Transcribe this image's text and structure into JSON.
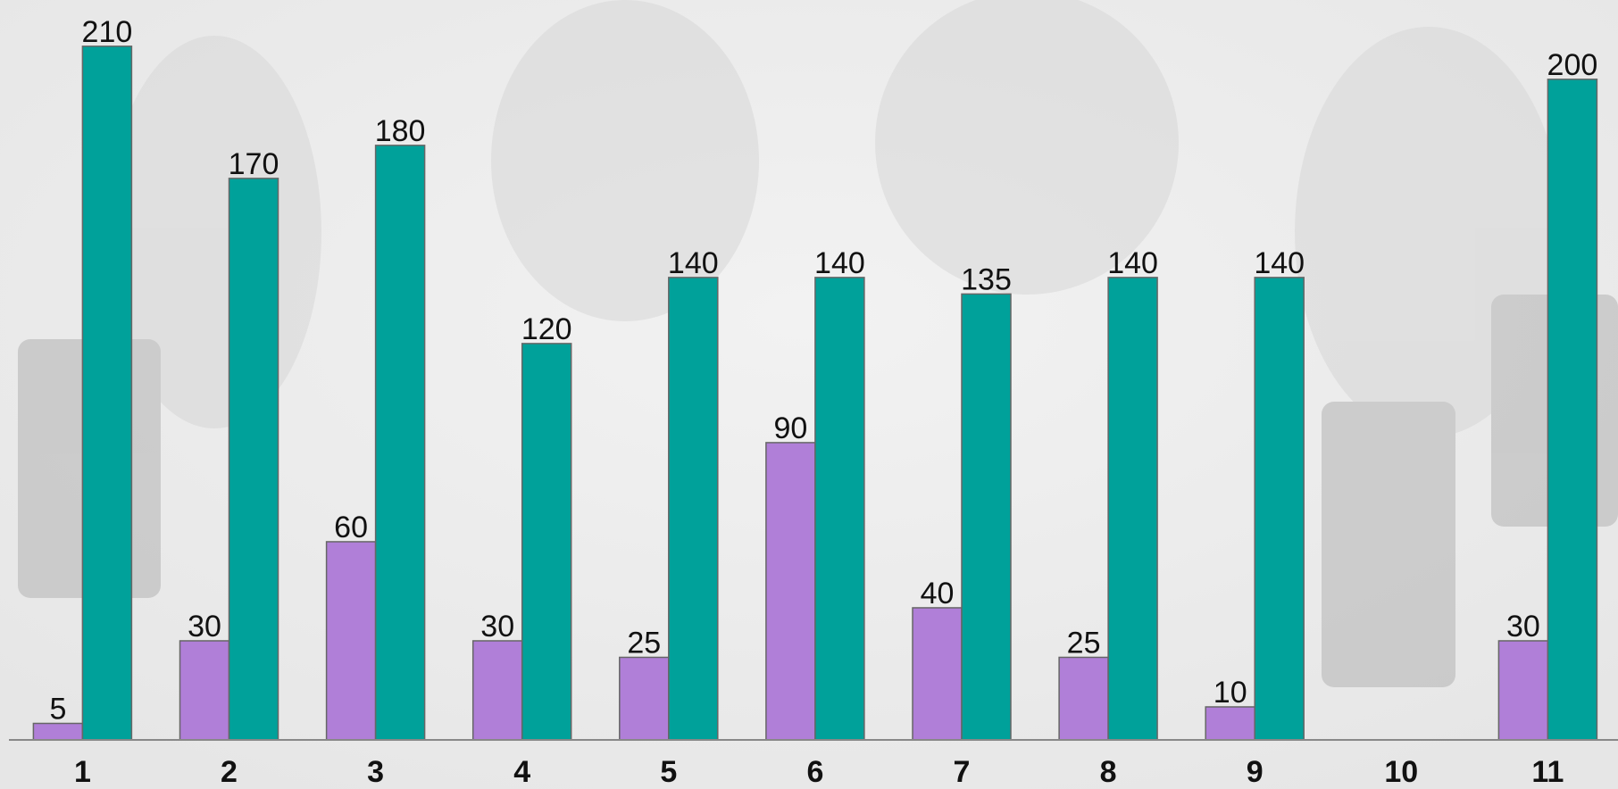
{
  "chart_data": {
    "type": "bar",
    "categories": [
      "1",
      "2",
      "3",
      "4",
      "5",
      "6",
      "7",
      "8",
      "9",
      "10",
      "11"
    ],
    "series": [
      {
        "color": "#b07fd8",
        "values": [
          5,
          30,
          60,
          30,
          25,
          90,
          40,
          25,
          10,
          null,
          30
        ]
      },
      {
        "color": "#00a19a",
        "values": [
          210,
          170,
          180,
          120,
          140,
          140,
          135,
          140,
          140,
          null,
          200
        ]
      }
    ],
    "ylim": [
      0,
      224
    ]
  }
}
